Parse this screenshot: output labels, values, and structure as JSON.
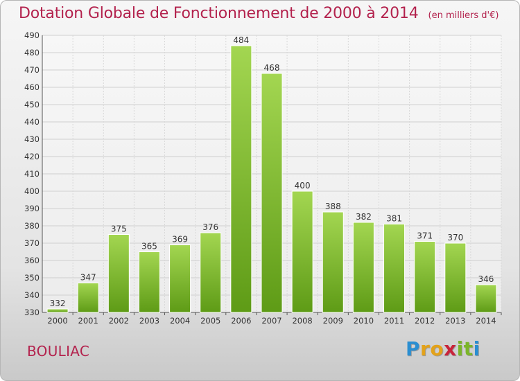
{
  "header": {
    "title": "Dotation Globale de Fonctionnement de 2000 à 2014",
    "unit": "(en milliers d'€)"
  },
  "footer": {
    "city": "BOULIAC",
    "logo": "Proxiti"
  },
  "colors": {
    "title": "#b3224d",
    "bar_light": "#9fd34a",
    "bar_dark": "#5f9c17"
  },
  "chart_data": {
    "type": "bar",
    "categories": [
      "2000",
      "2001",
      "2002",
      "2003",
      "2004",
      "2005",
      "2006",
      "2007",
      "2008",
      "2009",
      "2010",
      "2011",
      "2012",
      "2013",
      "2014"
    ],
    "values": [
      332,
      347,
      375,
      365,
      369,
      376,
      484,
      468,
      400,
      388,
      382,
      381,
      371,
      370,
      346
    ],
    "title": "Dotation Globale de Fonctionnement de 2000 à 2014",
    "subtitle": "(en milliers d'€)",
    "xlabel": "",
    "ylabel": "",
    "ylim": [
      330,
      490
    ],
    "yticks": [
      330,
      340,
      350,
      360,
      370,
      380,
      390,
      400,
      410,
      420,
      430,
      440,
      450,
      460,
      470,
      480,
      490
    ],
    "grid": true,
    "legend": "none",
    "data_labels": true
  }
}
